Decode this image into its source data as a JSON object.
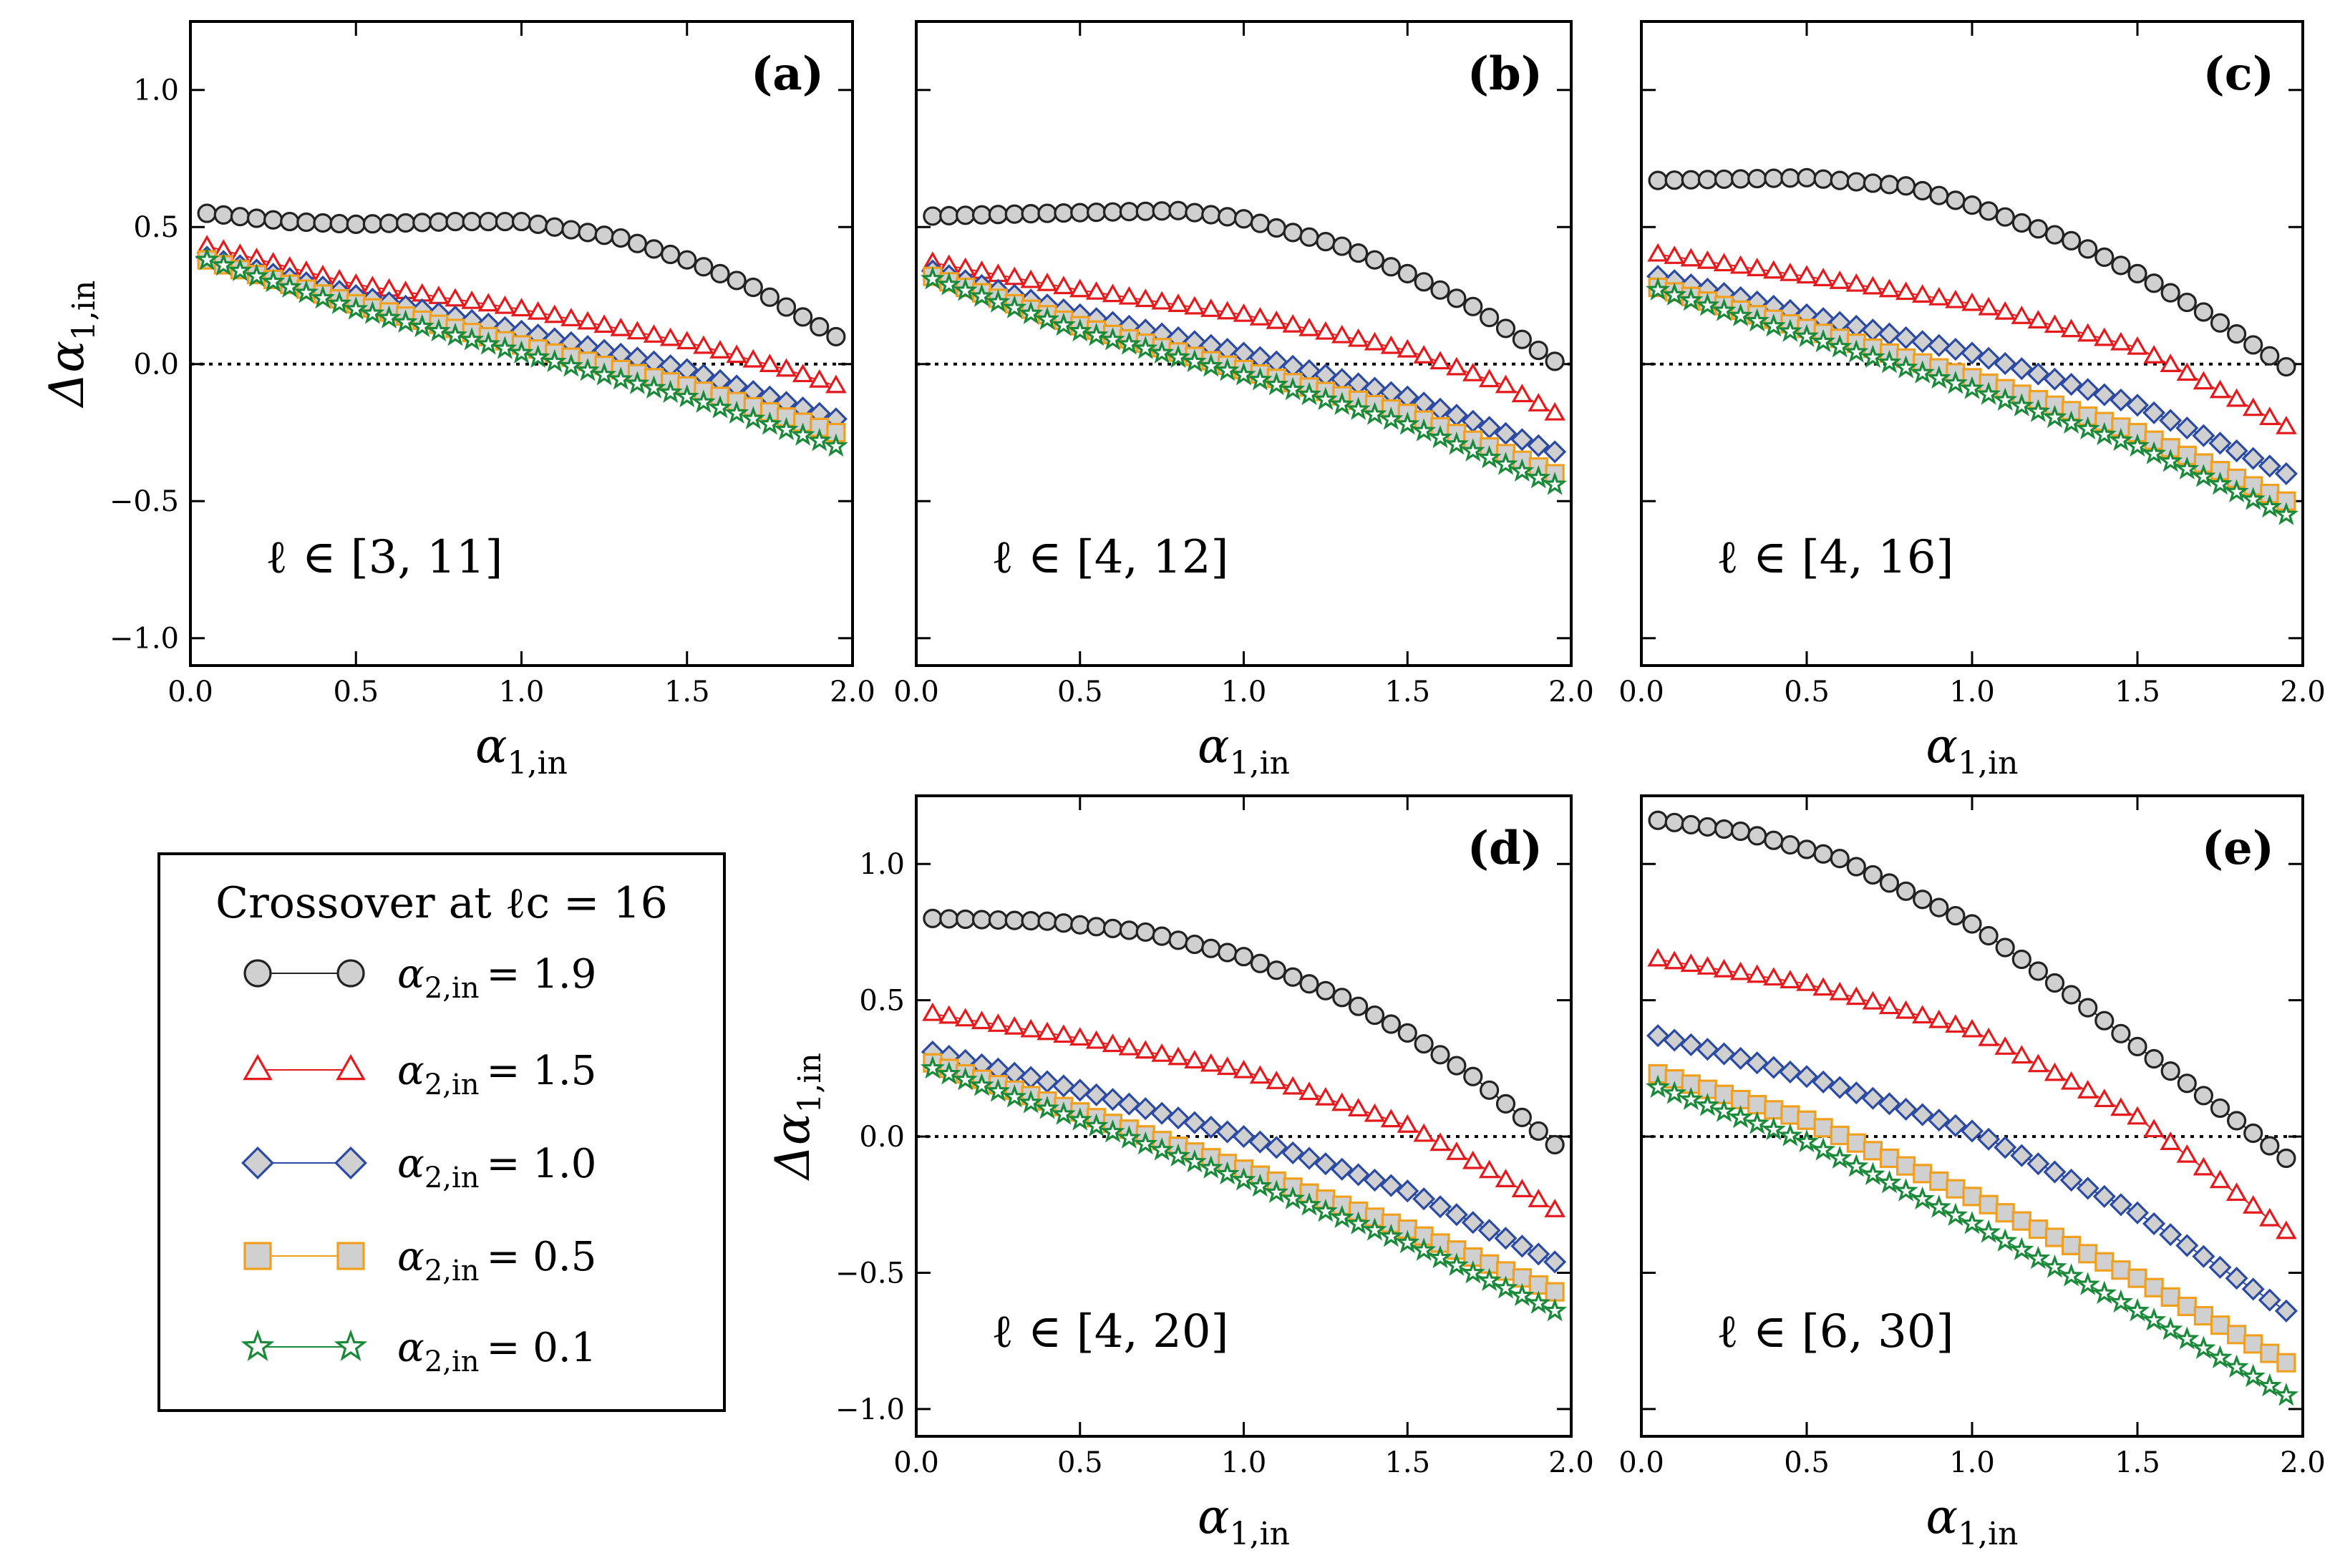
{
  "legend": {
    "title": "Crossover at ℓc = 16",
    "entries": [
      {
        "var": "α",
        "sub": "2,in",
        "value": "= 1.9",
        "marker": "circle",
        "edge": "#222222",
        "face": "#d0d0d0"
      },
      {
        "var": "α",
        "sub": "2,in",
        "value": "= 1.5",
        "marker": "triangle",
        "edge": "#e41a1c",
        "face": "#ffffff"
      },
      {
        "var": "α",
        "sub": "2,in",
        "value": "= 1.0",
        "marker": "diamond",
        "edge": "#2b4aa3",
        "face": "#d0d0d0"
      },
      {
        "var": "α",
        "sub": "2,in",
        "value": "= 0.5",
        "marker": "square",
        "edge": "#f0a020",
        "face": "#d0d0d0"
      },
      {
        "var": "α",
        "sub": "2,in",
        "value": "= 0.1",
        "marker": "star",
        "edge": "#1a8a3a",
        "face": "#ffffff"
      }
    ]
  },
  "axis_text": {
    "x_var": "α",
    "x_sub": "1,in",
    "y_var": "Δα",
    "y_sub": "1,in",
    "x_ticks": [
      "0.0",
      "0.5",
      "1.0",
      "1.5",
      "2.0"
    ],
    "y_ticks": [
      "1.0",
      "0.5",
      "0.0",
      "−0.5",
      "−1.0"
    ]
  },
  "chart_data": [
    {
      "type": "line",
      "panel": "(a)",
      "range_label": "ℓ ∈ [3, 11]",
      "xlim": [
        0,
        2
      ],
      "ylim": [
        -1.1,
        1.25
      ],
      "x_range": [
        0.05,
        1.95
      ],
      "points": 39,
      "series": [
        {
          "style": 0,
          "anchors_x": [
            0.05,
            0.3,
            0.5,
            0.8,
            1.0,
            1.3,
            1.5,
            1.7,
            1.95
          ],
          "anchors_y": [
            0.55,
            0.52,
            0.51,
            0.52,
            0.52,
            0.46,
            0.38,
            0.28,
            0.1
          ]
        },
        {
          "style": 1,
          "anchors_x": [
            0.05,
            0.5,
            1.0,
            1.5,
            1.8,
            1.95
          ],
          "anchors_y": [
            0.43,
            0.29,
            0.2,
            0.08,
            -0.02,
            -0.08
          ]
        },
        {
          "style": 2,
          "anchors_x": [
            0.05,
            0.5,
            1.0,
            1.5,
            1.95
          ],
          "anchors_y": [
            0.39,
            0.25,
            0.12,
            -0.02,
            -0.2
          ]
        },
        {
          "style": 3,
          "anchors_x": [
            0.05,
            0.5,
            1.0,
            1.5,
            1.95
          ],
          "anchors_y": [
            0.38,
            0.22,
            0.07,
            -0.08,
            -0.25
          ]
        },
        {
          "style": 4,
          "anchors_x": [
            0.05,
            0.5,
            1.0,
            1.5,
            1.95
          ],
          "anchors_y": [
            0.38,
            0.2,
            0.04,
            -0.12,
            -0.3
          ]
        }
      ]
    },
    {
      "type": "line",
      "panel": "(b)",
      "range_label": "ℓ ∈ [4, 12]",
      "xlim": [
        0,
        2
      ],
      "ylim": [
        -1.1,
        1.25
      ],
      "x_range": [
        0.05,
        1.95
      ],
      "points": 39,
      "series": [
        {
          "style": 0,
          "anchors_x": [
            0.05,
            0.4,
            0.8,
            1.0,
            1.3,
            1.5,
            1.7,
            1.95
          ],
          "anchors_y": [
            0.54,
            0.55,
            0.56,
            0.53,
            0.43,
            0.33,
            0.21,
            0.01
          ]
        },
        {
          "style": 1,
          "anchors_x": [
            0.05,
            0.5,
            1.0,
            1.5,
            1.8,
            1.95
          ],
          "anchors_y": [
            0.37,
            0.27,
            0.18,
            0.05,
            -0.08,
            -0.18
          ]
        },
        {
          "style": 2,
          "anchors_x": [
            0.05,
            0.5,
            1.0,
            1.5,
            1.95
          ],
          "anchors_y": [
            0.34,
            0.18,
            0.04,
            -0.12,
            -0.32
          ]
        },
        {
          "style": 3,
          "anchors_x": [
            0.05,
            0.5,
            1.0,
            1.5,
            1.95
          ],
          "anchors_y": [
            0.32,
            0.14,
            -0.02,
            -0.18,
            -0.4
          ]
        },
        {
          "style": 4,
          "anchors_x": [
            0.05,
            0.5,
            1.0,
            1.5,
            1.95
          ],
          "anchors_y": [
            0.31,
            0.12,
            -0.04,
            -0.22,
            -0.44
          ]
        }
      ]
    },
    {
      "type": "line",
      "panel": "(c)",
      "range_label": "ℓ ∈ [4, 16]",
      "xlim": [
        0,
        2
      ],
      "ylim": [
        -1.1,
        1.25
      ],
      "x_range": [
        0.05,
        1.95
      ],
      "points": 39,
      "series": [
        {
          "style": 0,
          "anchors_x": [
            0.05,
            0.5,
            0.8,
            1.0,
            1.3,
            1.5,
            1.7,
            1.95
          ],
          "anchors_y": [
            0.67,
            0.68,
            0.65,
            0.58,
            0.45,
            0.33,
            0.19,
            -0.01
          ]
        },
        {
          "style": 1,
          "anchors_x": [
            0.05,
            0.5,
            1.0,
            1.5,
            1.8,
            1.95
          ],
          "anchors_y": [
            0.4,
            0.32,
            0.22,
            0.06,
            -0.13,
            -0.23
          ]
        },
        {
          "style": 2,
          "anchors_x": [
            0.05,
            0.5,
            1.0,
            1.5,
            1.95
          ],
          "anchors_y": [
            0.32,
            0.18,
            0.04,
            -0.15,
            -0.4
          ]
        },
        {
          "style": 3,
          "anchors_x": [
            0.05,
            0.5,
            1.0,
            1.5,
            1.95
          ],
          "anchors_y": [
            0.28,
            0.13,
            -0.05,
            -0.25,
            -0.5
          ]
        },
        {
          "style": 4,
          "anchors_x": [
            0.05,
            0.5,
            1.0,
            1.5,
            1.95
          ],
          "anchors_y": [
            0.27,
            0.1,
            -0.09,
            -0.3,
            -0.55
          ]
        }
      ]
    },
    {
      "type": "line",
      "panel": "(d)",
      "range_label": "ℓ ∈ [4, 20]",
      "xlim": [
        0,
        2
      ],
      "ylim": [
        -1.1,
        1.25
      ],
      "x_range": [
        0.05,
        1.95
      ],
      "points": 39,
      "series": [
        {
          "style": 0,
          "anchors_x": [
            0.05,
            0.4,
            0.7,
            1.0,
            1.3,
            1.5,
            1.7,
            1.95
          ],
          "anchors_y": [
            0.8,
            0.79,
            0.75,
            0.66,
            0.51,
            0.38,
            0.22,
            -0.03
          ]
        },
        {
          "style": 1,
          "anchors_x": [
            0.05,
            0.5,
            1.0,
            1.5,
            1.8,
            1.95
          ],
          "anchors_y": [
            0.45,
            0.36,
            0.24,
            0.04,
            -0.16,
            -0.27
          ]
        },
        {
          "style": 2,
          "anchors_x": [
            0.05,
            0.5,
            1.0,
            1.5,
            1.95
          ],
          "anchors_y": [
            0.31,
            0.17,
            0.0,
            -0.2,
            -0.46
          ]
        },
        {
          "style": 3,
          "anchors_x": [
            0.05,
            0.5,
            1.0,
            1.5,
            1.95
          ],
          "anchors_y": [
            0.27,
            0.09,
            -0.12,
            -0.34,
            -0.57
          ]
        },
        {
          "style": 4,
          "anchors_x": [
            0.05,
            0.5,
            1.0,
            1.5,
            1.95
          ],
          "anchors_y": [
            0.25,
            0.06,
            -0.16,
            -0.39,
            -0.64
          ]
        }
      ]
    },
    {
      "type": "line",
      "panel": "(e)",
      "range_label": "ℓ ∈ [6, 30]",
      "xlim": [
        0,
        2
      ],
      "ylim": [
        -1.1,
        1.25
      ],
      "x_range": [
        0.05,
        1.95
      ],
      "points": 39,
      "series": [
        {
          "style": 0,
          "anchors_x": [
            0.05,
            0.3,
            0.6,
            1.0,
            1.3,
            1.5,
            1.7,
            1.95
          ],
          "anchors_y": [
            1.16,
            1.12,
            1.02,
            0.78,
            0.52,
            0.33,
            0.15,
            -0.08
          ]
        },
        {
          "style": 1,
          "anchors_x": [
            0.05,
            0.5,
            1.0,
            1.5,
            1.8,
            1.95
          ],
          "anchors_y": [
            0.65,
            0.56,
            0.39,
            0.07,
            -0.21,
            -0.35
          ]
        },
        {
          "style": 2,
          "anchors_x": [
            0.05,
            0.5,
            1.0,
            1.5,
            1.95
          ],
          "anchors_y": [
            0.37,
            0.22,
            0.02,
            -0.28,
            -0.64
          ]
        },
        {
          "style": 3,
          "anchors_x": [
            0.05,
            0.5,
            1.0,
            1.5,
            1.95
          ],
          "anchors_y": [
            0.23,
            0.06,
            -0.22,
            -0.52,
            -0.83
          ]
        },
        {
          "style": 4,
          "anchors_x": [
            0.05,
            0.5,
            1.0,
            1.5,
            1.95
          ],
          "anchors_y": [
            0.18,
            -0.02,
            -0.32,
            -0.64,
            -0.95
          ]
        }
      ]
    }
  ]
}
